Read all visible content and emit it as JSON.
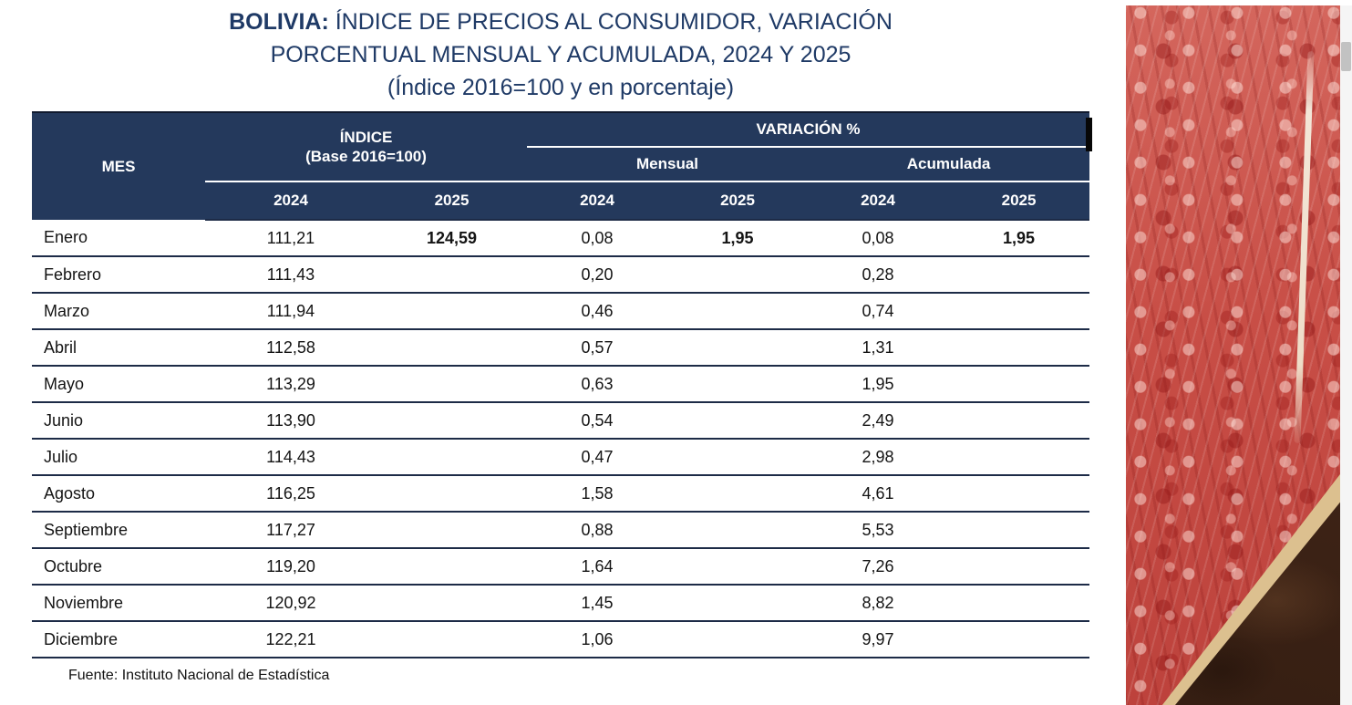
{
  "title": {
    "bold_prefix": "BOLIVIA:",
    "line1_rest": " ÍNDICE DE PRECIOS AL CONSUMIDOR, VARIACIÓN",
    "line2": "PORCENTUAL MENSUAL Y ACUMULADA, 2024 Y 2025",
    "line3": "(Índice 2016=100 y en porcentaje)"
  },
  "table": {
    "headers": {
      "mes": "MES",
      "indice_line1": "ÍNDICE",
      "indice_line2": "(Base 2016=100)",
      "variacion": "VARIACIÓN %",
      "mensual": "Mensual",
      "acumulada": "Acumulada",
      "year_cols": [
        "2024",
        "2025",
        "2024",
        "2025",
        "2024",
        "2025"
      ]
    },
    "value_keys": [
      "indice_2024",
      "indice_2025",
      "mensual_2024",
      "mensual_2025",
      "acumulada_2024",
      "acumulada_2025"
    ],
    "rows": [
      {
        "mes": "Enero",
        "indice_2024": "111,21",
        "indice_2025": "124,59",
        "mensual_2024": "0,08",
        "mensual_2025": "1,95",
        "acumulada_2024": "0,08",
        "acumulada_2025": "1,95",
        "bold_2025": true
      },
      {
        "mes": "Febrero",
        "indice_2024": "111,43",
        "mensual_2024": "0,20",
        "acumulada_2024": "0,28"
      },
      {
        "mes": "Marzo",
        "indice_2024": "111,94",
        "mensual_2024": "0,46",
        "acumulada_2024": "0,74"
      },
      {
        "mes": "Abril",
        "indice_2024": "112,58",
        "mensual_2024": "0,57",
        "acumulada_2024": "1,31"
      },
      {
        "mes": "Mayo",
        "indice_2024": "113,29",
        "mensual_2024": "0,63",
        "acumulada_2024": "1,95"
      },
      {
        "mes": "Junio",
        "indice_2024": "113,90",
        "mensual_2024": "0,54",
        "acumulada_2024": "2,49"
      },
      {
        "mes": "Julio",
        "indice_2024": "114,43",
        "mensual_2024": "0,47",
        "acumulada_2024": "2,98"
      },
      {
        "mes": "Agosto",
        "indice_2024": "116,25",
        "mensual_2024": "1,58",
        "acumulada_2024": "4,61"
      },
      {
        "mes": "Septiembre",
        "indice_2024": "117,27",
        "mensual_2024": "0,88",
        "acumulada_2024": "5,53"
      },
      {
        "mes": "Octubre",
        "indice_2024": "119,20",
        "mensual_2024": "1,64",
        "acumulada_2024": "7,26"
      },
      {
        "mes": "Noviembre",
        "indice_2024": "120,92",
        "mensual_2024": "1,45",
        "acumulada_2024": "8,82"
      },
      {
        "mes": "Diciembre",
        "indice_2024": "122,21",
        "mensual_2024": "1,06",
        "acumulada_2024": "9,97"
      }
    ]
  },
  "footer": {
    "source": "Fuente: Instituto Nacional de Estadística"
  },
  "photo": {
    "name": "raw-meat-photo"
  },
  "colors": {
    "header_bg": "#24395c",
    "title_text": "#1f3a66",
    "row_line": "#1d2b47",
    "header_divider": "#ffffff",
    "scrollbar_track": "#f5f5f5",
    "scrollbar_thumb": "#c2c2c2"
  }
}
